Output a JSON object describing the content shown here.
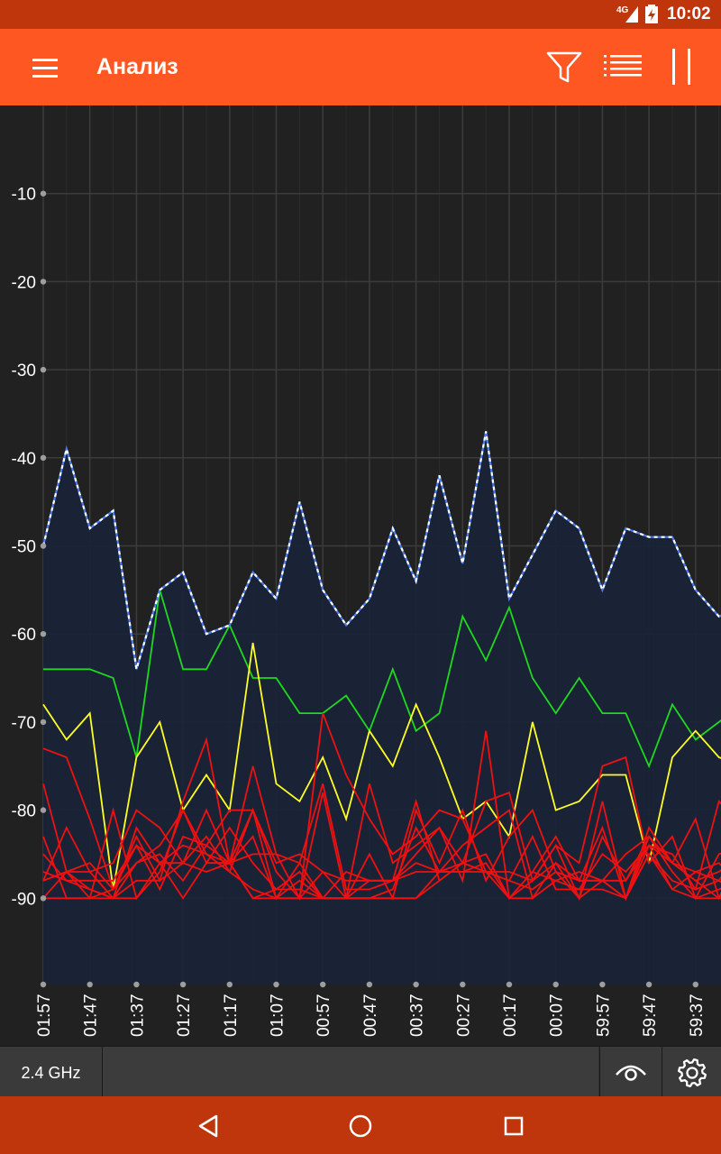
{
  "status": {
    "network": "4G",
    "time": "10:02"
  },
  "app_bar": {
    "title": "Анализ"
  },
  "bottom": {
    "band_label": "2.4 GHz"
  },
  "colors": {
    "fill": "#1a2338",
    "envelope": "#4a7ef0",
    "envelope_dash": "#ffffff",
    "green": "#1ed91e",
    "yellow": "#ffff24",
    "red": "#ee1111",
    "grid": "#3c3c3c",
    "grid_minor": "#2c2c2c",
    "label": "#ffffff",
    "axis_dot": "#9e9e9e"
  },
  "chart_data": {
    "type": "line",
    "xlabel": "",
    "ylabel": "",
    "ylim": [
      -100,
      0
    ],
    "yticks": [
      -10,
      -20,
      -30,
      -40,
      -50,
      -60,
      -70,
      -80,
      -90
    ],
    "x": [
      0,
      1,
      2,
      3,
      4,
      5,
      6,
      7,
      8,
      9,
      10,
      11,
      12,
      13,
      14,
      15,
      16,
      17,
      18,
      19,
      20,
      21,
      22,
      23,
      24,
      25,
      26,
      27,
      28,
      29,
      30
    ],
    "x_labels": [
      "01:57",
      "01:47",
      "01:37",
      "01:27",
      "01:17",
      "01:07",
      "00:57",
      "00:47",
      "00:37",
      "00:27",
      "00:17",
      "00:07",
      "59:57",
      "59:47",
      "59:37"
    ],
    "grid": true,
    "series": [
      {
        "color": "green",
        "values": [
          -64,
          -64,
          -64,
          -65,
          -74,
          -55,
          -64,
          -64,
          -59,
          -65,
          -65,
          -69,
          -69,
          -67,
          -71,
          -64,
          -71,
          -69,
          -58,
          -63,
          -57,
          -65,
          -69,
          -65,
          -69,
          -69,
          -75,
          -68,
          -72,
          -70,
          -68
        ]
      },
      {
        "color": "yellow",
        "values": [
          -68,
          -72,
          -69,
          -89,
          -74,
          -70,
          -80,
          -76,
          -80,
          -61,
          -77,
          -79,
          -74,
          -81,
          -71,
          -75,
          -68,
          -74,
          -81,
          -79,
          -83,
          -70,
          -80,
          -79,
          -76,
          -76,
          -86,
          -74,
          -71,
          -74,
          -75
        ]
      },
      {
        "color": "red",
        "values": [
          -73,
          -74,
          -81,
          -89,
          -86,
          -85,
          -88,
          -84,
          -80,
          -80,
          -87,
          -90,
          -69,
          -76,
          -81,
          -85,
          -83,
          -80,
          -81,
          -87,
          -87,
          -88,
          -84,
          -86,
          -75,
          -74,
          -86,
          -83,
          -90,
          -85,
          -84
        ]
      },
      {
        "color": "red",
        "values": [
          -77,
          -87,
          -86,
          -89,
          -83,
          -88,
          -79,
          -72,
          -86,
          -75,
          -85,
          -90,
          -78,
          -90,
          -77,
          -86,
          -84,
          -82,
          -86,
          -79,
          -78,
          -88,
          -84,
          -90,
          -79,
          -90,
          -82,
          -86,
          -81,
          -90,
          -86
        ]
      },
      {
        "color": "red",
        "values": [
          -83,
          -90,
          -90,
          -80,
          -90,
          -87,
          -80,
          -85,
          -87,
          -80,
          -90,
          -86,
          -77,
          -89,
          -89,
          -88,
          -85,
          -82,
          -88,
          -71,
          -90,
          -87,
          -83,
          -88,
          -82,
          -90,
          -85,
          -88,
          -89,
          -79,
          -82
        ]
      },
      {
        "color": "red",
        "values": [
          -88,
          -82,
          -87,
          -86,
          -80,
          -82,
          -86,
          -80,
          -86,
          -80,
          -86,
          -85,
          -87,
          -90,
          -85,
          -90,
          -80,
          -86,
          -80,
          -88,
          -83,
          -80,
          -87,
          -90,
          -83,
          -88,
          -83,
          -86,
          -87,
          -88,
          -84
        ]
      },
      {
        "color": "red",
        "values": [
          -90,
          -87,
          -90,
          -89,
          -84,
          -89,
          -83,
          -84,
          -86,
          -83,
          -90,
          -88,
          -90,
          -87,
          -88,
          -88,
          -79,
          -88,
          -86,
          -87,
          -88,
          -83,
          -89,
          -89,
          -85,
          -87,
          -84,
          -85,
          -89,
          -88,
          -90
        ]
      },
      {
        "color": "red",
        "values": [
          -87,
          -88,
          -89,
          -90,
          -86,
          -84,
          -80,
          -86,
          -82,
          -86,
          -89,
          -87,
          -90,
          -90,
          -88,
          -88,
          -87,
          -87,
          -84,
          -82,
          -80,
          -90,
          -86,
          -90,
          -88,
          -90,
          -84,
          -86,
          -88,
          -90,
          -84
        ]
      },
      {
        "color": "red",
        "values": [
          -85,
          -88,
          -88,
          -88,
          -84,
          -86,
          -84,
          -85,
          -86,
          -85,
          -85,
          -86,
          -90,
          -90,
          -90,
          -89,
          -82,
          -87,
          -86,
          -85,
          -90,
          -88,
          -86,
          -88,
          -88,
          -85,
          -83,
          -86,
          -88,
          -87,
          -85
        ]
      },
      {
        "color": "red",
        "values": [
          -88,
          -87,
          -87,
          -90,
          -82,
          -86,
          -86,
          -83,
          -87,
          -89,
          -90,
          -90,
          -87,
          -88,
          -88,
          -88,
          -86,
          -87,
          -87,
          -87,
          -88,
          -89,
          -87,
          -88,
          -88,
          -90,
          -83,
          -87,
          -90,
          -89,
          -88
        ]
      },
      {
        "color": "red",
        "values": [
          -88,
          -87,
          -89,
          -90,
          -88,
          -88,
          -86,
          -87,
          -86,
          -90,
          -89,
          -89,
          -90,
          -90,
          -90,
          -90,
          -90,
          -87,
          -87,
          -86,
          -90,
          -90,
          -88,
          -87,
          -88,
          -88,
          -84,
          -89,
          -87,
          -86,
          -89
        ]
      },
      {
        "color": "red",
        "values": [
          -90,
          -90,
          -90,
          -90,
          -90,
          -86,
          -90,
          -86,
          -86,
          -90,
          -90,
          -90,
          -90,
          -90,
          -90,
          -90,
          -90,
          -88,
          -86,
          -87,
          -90,
          -87,
          -88,
          -89,
          -89,
          -90,
          -85,
          -89,
          -90,
          -90,
          -90
        ]
      }
    ],
    "envelope": [
      -50,
      -39,
      -48,
      -46,
      -64,
      -55,
      -53,
      -60,
      -59,
      -53,
      -56,
      -45,
      -55,
      -59,
      -56,
      -48,
      -54,
      -42,
      -52,
      -37,
      -56,
      -51,
      -46,
      -48,
      -55,
      -48,
      -49,
      -49,
      -55,
      -58,
      -57
    ]
  }
}
